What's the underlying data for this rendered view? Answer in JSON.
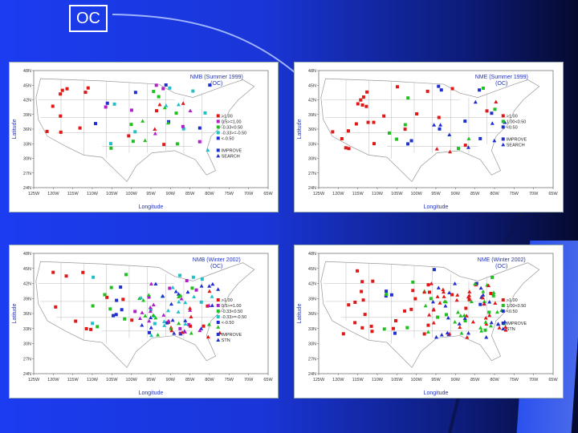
{
  "slide_title": "OC",
  "x_ticks": [
    "125W",
    "120W",
    "115W",
    "110W",
    "105W",
    "100W",
    "95W",
    "90W",
    "85W",
    "80W",
    "75W",
    "70W",
    "65W"
  ],
  "y_ticks": [
    "24N",
    "27N",
    "30N",
    "33N",
    "36N",
    "39N",
    "42N",
    "45N",
    "48N"
  ],
  "x_label": "Longitude",
  "y_label": "Latitude",
  "colors": {
    "red": "#e01818",
    "magenta": "#b020c8",
    "green": "#20c020",
    "cyan": "#20c0c8",
    "blue": "#2030d0"
  },
  "panels": [
    {
      "id": "nmb-summer",
      "title": "NMB (Summer 1999)",
      "subtitle": "(OC)",
      "legend": [
        {
          "label": ">1.00",
          "color": "red"
        },
        {
          "label": "0.5>=1.00",
          "color": "magenta"
        },
        {
          "label": "-0.33<0.50",
          "color": "green"
        },
        {
          "label": "-0.33>=-0.50",
          "color": "cyan"
        },
        {
          "label": "<-0.50",
          "color": "blue"
        }
      ],
      "networks": [
        {
          "label": "IMPROVE",
          "shape": "square"
        },
        {
          "label": "SEARCH",
          "shape": "triangle"
        }
      ]
    },
    {
      "id": "nme-summer",
      "title": "NME (Summer 1999)",
      "subtitle": "(OC)",
      "legend": [
        {
          "label": ">1.00",
          "color": "red"
        },
        {
          "label": "1.00<0.50",
          "color": "green"
        },
        {
          "label": "<0.50",
          "color": "blue"
        }
      ],
      "networks": [
        {
          "label": "IMPROVE",
          "shape": "square"
        },
        {
          "label": "SEARCH",
          "shape": "triangle"
        }
      ]
    },
    {
      "id": "nmb-winter",
      "title": "NMB (Winter 2002)",
      "subtitle": "(OC)",
      "legend": [
        {
          "label": ">1.00",
          "color": "red"
        },
        {
          "label": "0.5>=1.00",
          "color": "magenta"
        },
        {
          "label": "-0.33<0.50",
          "color": "green"
        },
        {
          "label": "-0.33>=-0.50",
          "color": "cyan"
        },
        {
          "label": "<-0.50",
          "color": "blue"
        }
      ],
      "networks": [
        {
          "label": "IMPROVE",
          "shape": "square"
        },
        {
          "label": "STN",
          "shape": "triangle"
        }
      ]
    },
    {
      "id": "nme-winter",
      "title": "NME (Winter 2002)",
      "subtitle": "(OC)",
      "legend": [
        {
          "label": ">1.00",
          "color": "red"
        },
        {
          "label": "1.00<0.50",
          "color": "green"
        },
        {
          "label": "<0.50",
          "color": "blue"
        }
      ],
      "networks": [
        {
          "label": "IMPROVE",
          "shape": "square"
        },
        {
          "label": "STN",
          "shape": "triangle"
        }
      ]
    }
  ]
}
